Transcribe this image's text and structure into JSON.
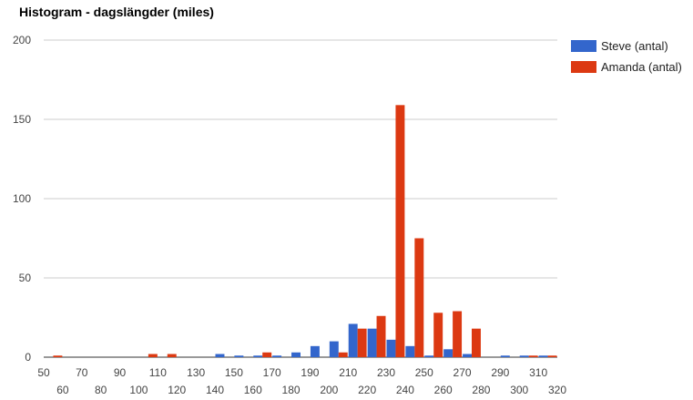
{
  "chart_data": {
    "type": "bar",
    "title": "Histogram - dagslängder (miles)",
    "xlabel": "",
    "ylabel": "",
    "ylim": [
      0,
      200
    ],
    "yticks": [
      0,
      50,
      100,
      150,
      200
    ],
    "grid": true,
    "legend_position": "right",
    "x_bins": [
      50,
      60,
      70,
      80,
      90,
      100,
      110,
      120,
      130,
      140,
      150,
      160,
      170,
      180,
      190,
      200,
      210,
      220,
      230,
      240,
      250,
      260,
      270,
      280,
      290,
      300,
      310
    ],
    "x_tick_labels_upper": [
      "50",
      "70",
      "90",
      "110",
      "130",
      "150",
      "170",
      "190",
      "210",
      "230",
      "250",
      "270",
      "290",
      "310"
    ],
    "x_tick_labels_lower": [
      "60",
      "80",
      "100",
      "120",
      "140",
      "160",
      "180",
      "200",
      "220",
      "240",
      "260",
      "280",
      "300",
      "320"
    ],
    "series": [
      {
        "name": "Steve (antal)",
        "color": "#3366cc",
        "values": [
          0,
          0,
          0,
          0,
          0,
          0,
          0,
          0,
          0,
          2,
          1,
          1,
          1,
          3,
          7,
          10,
          21,
          18,
          11,
          7,
          1,
          5,
          2,
          0,
          1,
          1,
          1
        ]
      },
      {
        "name": "Amanda (antal)",
        "color": "#dc3912",
        "values": [
          1,
          0,
          0,
          0,
          0,
          2,
          2,
          0,
          0,
          0,
          0,
          3,
          0,
          0,
          0,
          3,
          18,
          26,
          159,
          75,
          28,
          29,
          18,
          0,
          0,
          1,
          1
        ]
      }
    ]
  }
}
